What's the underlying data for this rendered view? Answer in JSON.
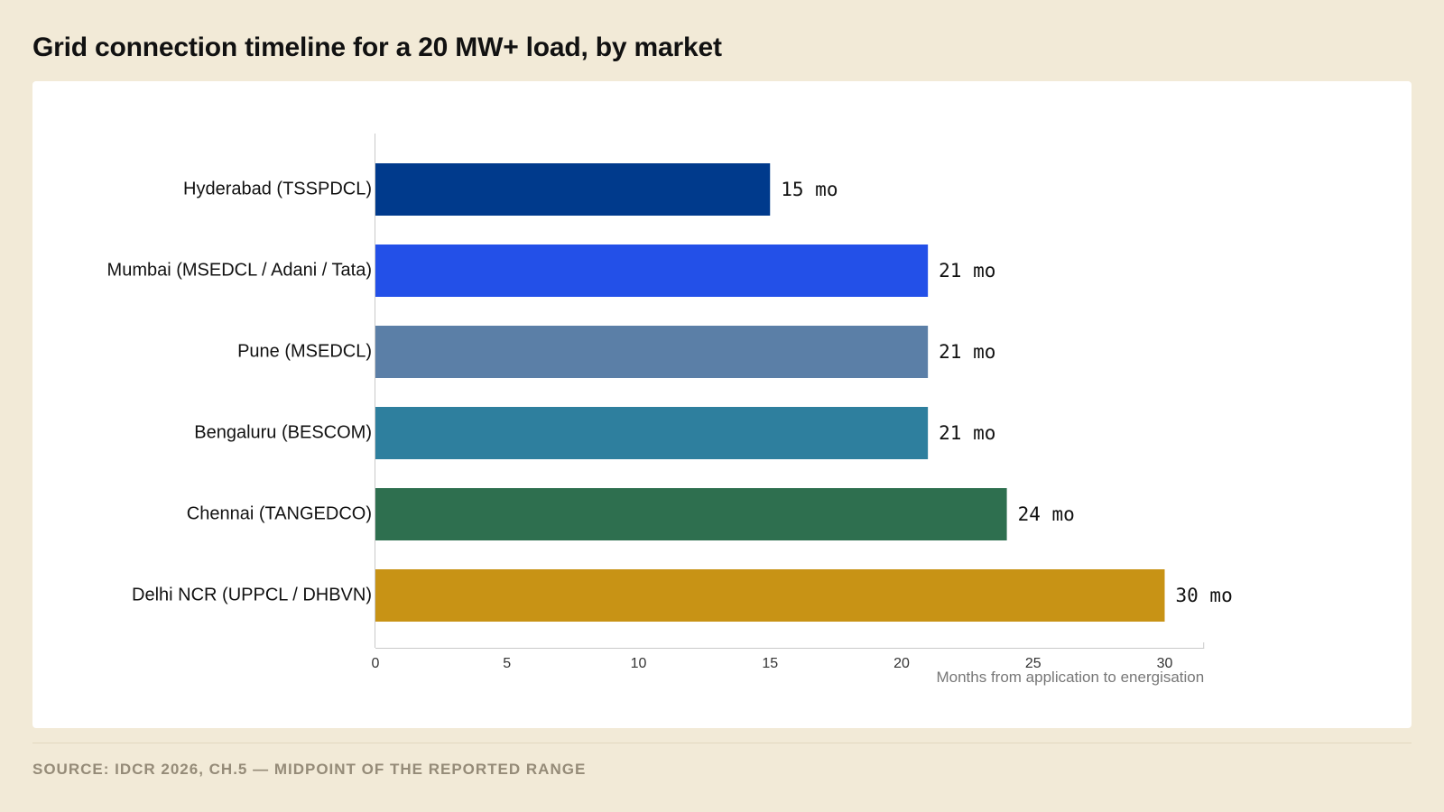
{
  "title": "Grid connection timeline for a 20 MW+ load, by market",
  "source": "SOURCE: IDCR 2026, CH.5 — MIDPOINT OF THE REPORTED RANGE",
  "chart_data": {
    "type": "bar",
    "orientation": "horizontal",
    "categories": [
      "Hyderabad (TSSPDCL)",
      "Mumbai (MSEDCL / Adani / Tata)",
      "Pune (MSEDCL)",
      "Bengaluru (BESCOM)",
      "Chennai (TANGEDCO)",
      "Delhi NCR (UPPCL / DHBVN)"
    ],
    "values": [
      15,
      21,
      21,
      21,
      24,
      30
    ],
    "value_labels": [
      "15 mo",
      "21 mo",
      "21 mo",
      "21 mo",
      "24 mo",
      "30 mo"
    ],
    "colors": [
      "#003a8c",
      "#2350e8",
      "#5b7fa7",
      "#2e7f9e",
      "#2e6f4f",
      "#c89315"
    ],
    "xlabel": "Months from application to energisation",
    "ylabel": "",
    "xlim": [
      0,
      31.5
    ],
    "xticks": [
      "0",
      "5",
      "10",
      "15",
      "20",
      "25",
      "30"
    ],
    "grid": false,
    "legend": "none"
  }
}
